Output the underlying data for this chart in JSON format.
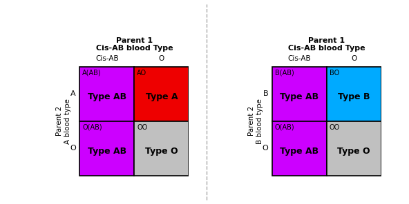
{
  "left_panel": {
    "title_line1": "Parent 1",
    "title_line2": "Cis-AB blood Type",
    "col_labels": [
      "Cis-AB",
      "O"
    ],
    "row_labels": [
      "A",
      "O"
    ],
    "y_label_line1": "Parent 2",
    "y_label_line2": "A blood type",
    "cells": [
      {
        "row": 0,
        "col": 0,
        "color": "#CC00FF",
        "genotype": "A(AB)",
        "phenotype": "Type AB"
      },
      {
        "row": 0,
        "col": 1,
        "color": "#EE0000",
        "genotype": "AO",
        "phenotype": "Type A"
      },
      {
        "row": 1,
        "col": 0,
        "color": "#CC00FF",
        "genotype": "O(AB)",
        "phenotype": "Type AB"
      },
      {
        "row": 1,
        "col": 1,
        "color": "#C0C0C0",
        "genotype": "OO",
        "phenotype": "Type O"
      }
    ]
  },
  "right_panel": {
    "title_line1": "Parent 1",
    "title_line2": "Cis-AB blood Type",
    "col_labels": [
      "Cis-AB",
      "O"
    ],
    "row_labels": [
      "B",
      "O"
    ],
    "y_label_line1": "Parent 2",
    "y_label_line2": "B blood type",
    "cells": [
      {
        "row": 0,
        "col": 0,
        "color": "#CC00FF",
        "genotype": "B(AB)",
        "phenotype": "Type AB"
      },
      {
        "row": 0,
        "col": 1,
        "color": "#00AAFF",
        "genotype": "BO",
        "phenotype": "Type B"
      },
      {
        "row": 1,
        "col": 0,
        "color": "#CC00FF",
        "genotype": "O(AB)",
        "phenotype": "Type AB"
      },
      {
        "row": 1,
        "col": 1,
        "color": "#C0C0C0",
        "genotype": "OO",
        "phenotype": "Type O"
      }
    ]
  },
  "divider_color": "#AAAAAA",
  "cell_text_color": "#000000",
  "genotype_color": "#000000",
  "title_fontsize": 8,
  "col_label_fontsize": 7.5,
  "row_label_fontsize": 8,
  "cell_label_fontsize": 7,
  "cell_type_fontsize": 9,
  "ylabel_fontsize": 7.5
}
